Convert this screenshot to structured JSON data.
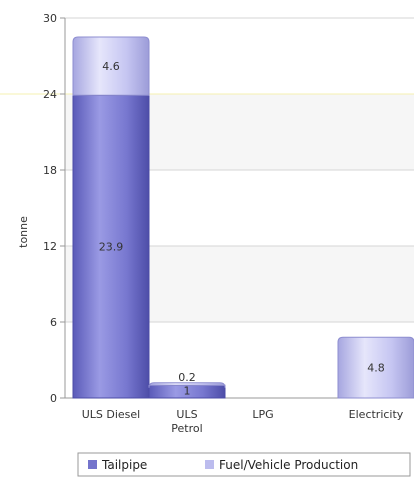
{
  "chart_data": {
    "type": "bar",
    "stacked": true,
    "categories": [
      "ULS Diesel",
      "ULS\nPetrol",
      "LPG",
      "Electricity"
    ],
    "series": [
      {
        "name": "Tailpipe",
        "values": [
          23.9,
          1,
          0,
          0
        ],
        "color": "#7474cc"
      },
      {
        "name": "Fuel/Vehicle Production",
        "values": [
          4.6,
          0.2,
          0,
          4.8
        ],
        "color": "#bcbcee"
      }
    ],
    "value_labels": [
      {
        "category": "ULS Diesel",
        "series": "Tailpipe",
        "text": "23.9"
      },
      {
        "category": "ULS Diesel",
        "series": "Fuel/Vehicle Production",
        "text": "4.6"
      },
      {
        "category": "ULS\nPetrol",
        "series": "Tailpipe",
        "text": "1"
      },
      {
        "category": "ULS\nPetrol",
        "series": "Fuel/Vehicle Production",
        "text": "0.2"
      },
      {
        "category": "Electricity",
        "series": "Fuel/Vehicle Production",
        "text": "4.8"
      }
    ],
    "ylabel": "tonne",
    "xlabel": "",
    "ylim": [
      0,
      30
    ],
    "yticks": [
      0,
      6,
      12,
      18,
      24,
      30
    ],
    "grid": true,
    "legend_position": "bottom",
    "reference_line": {
      "y": 24,
      "color": "#f5f0b0"
    }
  }
}
